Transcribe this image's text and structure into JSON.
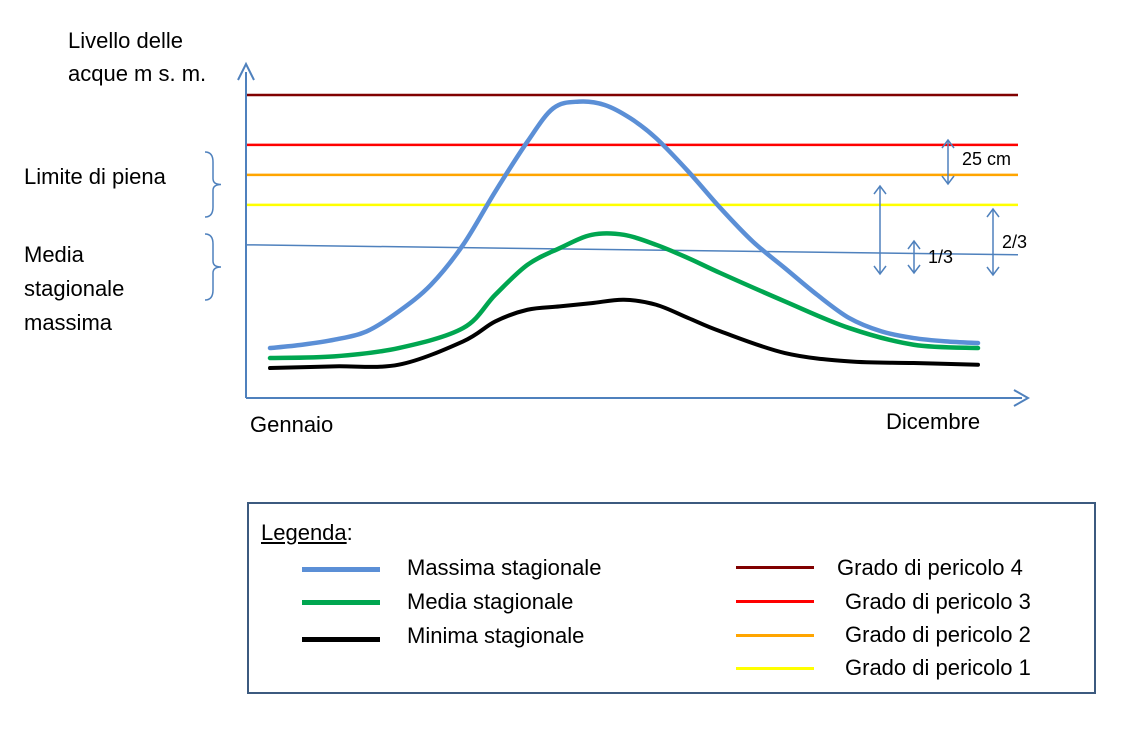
{
  "chart_data": {
    "type": "line",
    "title": "",
    "ylabel": "Livello delle acque m s. m.",
    "xlabel": "",
    "x_start_label": "Gennaio",
    "x_end_label": "Dicembre",
    "ylim": [
      0,
      100
    ],
    "xlim": [
      0,
      12
    ],
    "side_labels": {
      "flood": "Limite di piena",
      "seasonal_mean": [
        "Media",
        "stagionale",
        "massima"
      ]
    },
    "series": [
      {
        "name": "Massima stagionale",
        "color": "#5b8fd6",
        "x": [
          0.0,
          0.5,
          1.0,
          1.5,
          2.0,
          2.5,
          3.0,
          3.5,
          4.0,
          4.4,
          4.8,
          5.2,
          5.6,
          6.0,
          6.5,
          7.0,
          7.5,
          8.0,
          8.5,
          9.0,
          9.5,
          10.0,
          10.5,
          11.0
        ],
        "y": [
          15,
          16,
          17.5,
          20,
          26,
          34,
          46,
          62,
          77,
          87,
          89,
          88,
          84,
          78,
          68,
          57,
          47,
          39,
          31,
          24,
          20,
          18,
          17,
          16.5
        ]
      },
      {
        "name": "Media stagionale",
        "color": "#00a650",
        "x": [
          0.0,
          1.0,
          2.0,
          3.0,
          3.5,
          4.0,
          4.5,
          5.0,
          5.5,
          6.0,
          6.5,
          7.0,
          8.0,
          9.0,
          10.0,
          11.0
        ],
        "y": [
          12,
          12.5,
          15,
          21,
          31,
          40,
          45,
          49,
          49,
          46,
          42,
          37.5,
          29,
          21,
          16,
          15
        ]
      },
      {
        "name": "Minima stagionale",
        "color": "#000000",
        "x": [
          0.0,
          1.0,
          2.0,
          3.0,
          3.5,
          4.0,
          4.5,
          5.0,
          5.5,
          6.0,
          6.5,
          7.0,
          8.0,
          9.0,
          10.0,
          11.0
        ],
        "y": [
          9,
          9.5,
          10,
          17,
          23,
          26.5,
          27.5,
          28.5,
          29.5,
          28,
          24,
          20,
          13.5,
          11,
          10.5,
          10
        ]
      }
    ],
    "reference_lines": [
      {
        "name": "Media stagionale massima",
        "color": "#4f81bd",
        "x": [
          0,
          12
        ],
        "y": [
          46,
          43
        ]
      },
      {
        "name": "Grado di pericolo 1",
        "color": "#ffff00",
        "value": 58
      },
      {
        "name": "Grado di pericolo 2",
        "color": "#ffa500",
        "value": 67
      },
      {
        "name": "Grado di pericolo 3",
        "color": "#ff0000",
        "value": 76
      },
      {
        "name": "Grado di pericolo 4",
        "color": "#800000",
        "value": 91
      }
    ],
    "annotations": [
      {
        "text": "25 cm",
        "between": [
          76,
          91
        ]
      },
      {
        "text": "1/3",
        "between": [
          46,
          58
        ]
      },
      {
        "text": "2/3",
        "between": [
          43,
          67
        ]
      }
    ],
    "legend": {
      "title": "Legenda",
      "title_suffix": ":",
      "placement": "bottom",
      "left": [
        {
          "label": "Massima stagionale",
          "color": "#5b8fd6"
        },
        {
          "label": "Media stagionale",
          "color": "#00a650"
        },
        {
          "label": "Minima stagionale",
          "color": "#000000"
        }
      ],
      "right": [
        {
          "label": "Grado di pericolo 4",
          "color": "#800000"
        },
        {
          "label": "Grado di pericolo 3",
          "color": "#ff0000"
        },
        {
          "label": "Grado di pericolo 2",
          "color": "#ffa500"
        },
        {
          "label": "Grado di pericolo 1",
          "color": "#ffff00"
        }
      ]
    },
    "axis_color": "#4f81bd",
    "grid": false
  }
}
